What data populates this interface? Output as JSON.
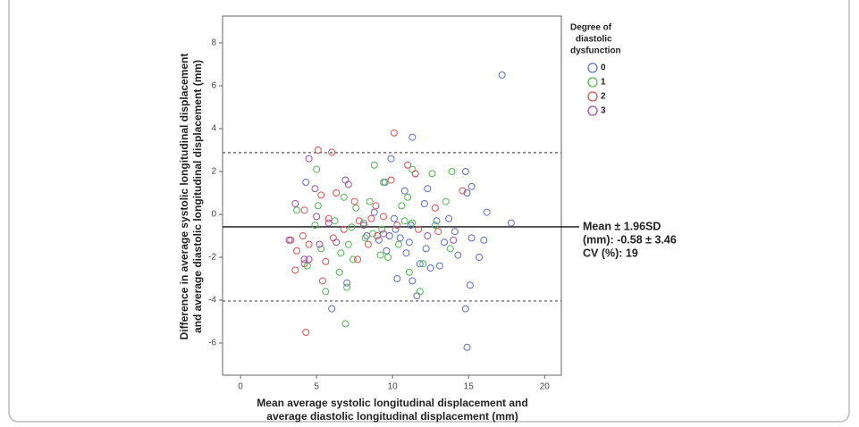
{
  "chart_data": {
    "type": "scatter",
    "y_label": [
      "Difference in average systolic longitudinal displacement",
      "and average diastolic longitudinal displacement (mm)"
    ],
    "x_label": [
      "Mean average systolic longitudinal displacement and",
      "average diastolic longitudinal displacement (mm)"
    ],
    "legend_title": [
      "Degree of",
      "diastolic",
      "dysfunction"
    ],
    "annotation": [
      "Mean ± 1.96SD",
      "(mm): -0.58 ± 3.46",
      "CV (%): 19"
    ],
    "xlim": [
      -1.18,
      21.1
    ],
    "ylim": [
      -7.5,
      9.25
    ],
    "xticks": [
      0,
      5,
      10,
      15,
      20
    ],
    "yticks": [
      -6,
      -4,
      -2,
      0,
      2,
      4,
      6,
      8
    ],
    "reference_lines": [
      {
        "value": -0.58,
        "style": "solid"
      },
      {
        "value": 2.88,
        "style": "dashed"
      },
      {
        "value": -4.04,
        "style": "dashed"
      }
    ],
    "series": [
      {
        "name": "0",
        "color": "#5a6cc8",
        "x": [
          17.2,
          11.3,
          9.9,
          14.8,
          15.2,
          14.9,
          12.3,
          11.5,
          10.8,
          9.5,
          4.3,
          16.2,
          13.7,
          12.9,
          11.2,
          10.2,
          9.8,
          17.8,
          14.1,
          15.2,
          16.0,
          13.4,
          12.2,
          11.1,
          10.5,
          9.1,
          14.3,
          15.7,
          12.5,
          11.8,
          10.9,
          9.6,
          8.3,
          10.3,
          11.3,
          13.1,
          15.1,
          14.8,
          6.0,
          14.9,
          7.0,
          11.6,
          12.1,
          8.8,
          10.1
        ],
        "values": [
          6.5,
          3.6,
          2.6,
          2.0,
          1.3,
          1.0,
          1.2,
          1.9,
          1.1,
          1.5,
          1.5,
          0.1,
          -0.2,
          -0.3,
          -0.5,
          -0.7,
          -1.0,
          -0.4,
          -0.8,
          -1.1,
          -1.2,
          -1.3,
          -1.6,
          -1.3,
          -1.1,
          -1.2,
          -1.9,
          -2.0,
          -2.5,
          -2.3,
          -1.8,
          -1.7,
          -1.0,
          -3.0,
          -3.1,
          -2.4,
          -3.3,
          -4.4,
          -4.4,
          -6.2,
          -3.2,
          -3.8,
          0.5,
          0.1,
          -0.2
        ]
      },
      {
        "name": "1",
        "color": "#4fb84f",
        "x": [
          5.0,
          8.8,
          9.4,
          11.3,
          12.6,
          13.9,
          3.7,
          5.1,
          6.8,
          7.6,
          8.5,
          10.6,
          11.0,
          13.5,
          4.9,
          6.2,
          7.3,
          8.1,
          9.3,
          10.8,
          11.3,
          12.8,
          5.3,
          6.6,
          7.1,
          7.4,
          8.2,
          9.2,
          10.4,
          11.1,
          12.0,
          13.8,
          5.6,
          6.5,
          7.0,
          11.8,
          6.9,
          4.4,
          9.7,
          8.7
        ],
        "values": [
          2.1,
          2.3,
          1.5,
          2.1,
          1.9,
          2.0,
          0.2,
          0.4,
          0.8,
          0.3,
          0.6,
          0.4,
          0.8,
          0.6,
          -0.5,
          -0.3,
          -0.6,
          -0.4,
          -0.7,
          -0.3,
          -0.4,
          -0.5,
          -1.6,
          -1.8,
          -1.4,
          -2.1,
          -1.1,
          -1.9,
          -1.4,
          -2.7,
          -2.3,
          -1.6,
          -3.6,
          -2.7,
          -3.4,
          -3.6,
          -5.1,
          -2.4,
          -2.0,
          -0.9
        ]
      },
      {
        "name": "2",
        "color": "#e0504f",
        "x": [
          10.1,
          5.1,
          6.0,
          11.0,
          11.5,
          9.9,
          6.3,
          5.3,
          4.2,
          7.5,
          8.9,
          12.8,
          14.6,
          3.3,
          4.1,
          5.8,
          6.8,
          7.8,
          8.6,
          9.4,
          10.3,
          11.7,
          3.7,
          4.5,
          5.6,
          6.1,
          7.7,
          8.4,
          4.2,
          3.6,
          5.4,
          4.3,
          13.0,
          9.0
        ],
        "values": [
          3.8,
          3.0,
          2.9,
          2.3,
          1.9,
          1.6,
          1.0,
          0.9,
          0.2,
          0.6,
          0.4,
          0.3,
          1.1,
          -1.2,
          -1.0,
          -0.2,
          -0.7,
          -0.3,
          -0.2,
          -0.1,
          -0.5,
          -0.7,
          -1.7,
          -1.4,
          -2.2,
          -1.1,
          -2.1,
          -1.4,
          -2.3,
          -2.6,
          -3.1,
          -5.5,
          -0.8,
          -1.0
        ]
      },
      {
        "name": "3",
        "color": "#9a4ea6",
        "x": [
          4.5,
          4.9,
          6.9,
          7.1,
          3.6,
          5.0,
          5.8,
          8.1,
          3.2,
          4.2,
          4.5,
          6.3,
          5.2,
          9.4,
          12.3,
          14.0
        ],
        "values": [
          2.6,
          1.2,
          1.6,
          1.4,
          0.5,
          -0.1,
          -0.4,
          -0.5,
          -1.2,
          -2.1,
          -2.1,
          -1.3,
          -1.4,
          -0.9,
          -1.0,
          -1.2
        ]
      }
    ]
  }
}
